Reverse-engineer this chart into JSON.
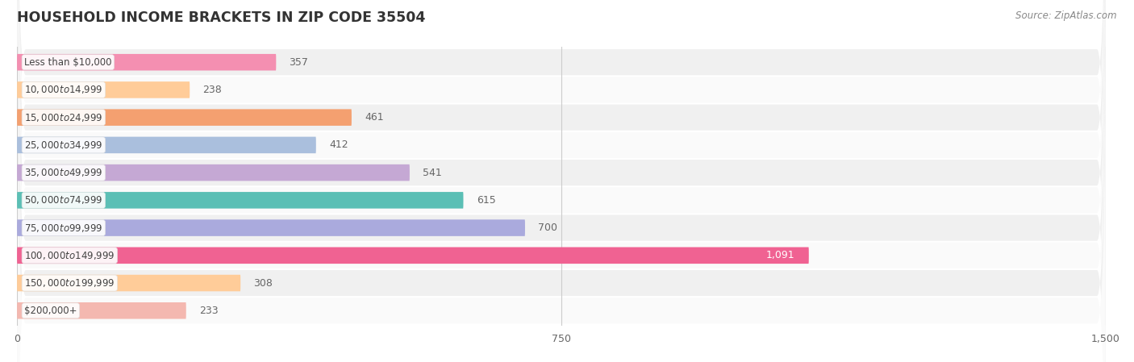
{
  "title": "HOUSEHOLD INCOME BRACKETS IN ZIP CODE 35504",
  "source": "Source: ZipAtlas.com",
  "categories": [
    "Less than $10,000",
    "$10,000 to $14,999",
    "$15,000 to $24,999",
    "$25,000 to $34,999",
    "$35,000 to $49,999",
    "$50,000 to $74,999",
    "$75,000 to $99,999",
    "$100,000 to $149,999",
    "$150,000 to $199,999",
    "$200,000+"
  ],
  "values": [
    357,
    238,
    461,
    412,
    541,
    615,
    700,
    1091,
    308,
    233
  ],
  "bar_colors": [
    "#F48FB1",
    "#FFCC99",
    "#F4A070",
    "#AABFDD",
    "#C5A8D4",
    "#5BBFB5",
    "#AAAADD",
    "#F06292",
    "#FFCC99",
    "#F4B8B0"
  ],
  "xlim": [
    0,
    1500
  ],
  "xticks": [
    0,
    750,
    1500
  ],
  "row_bg_light": "#f0f0f0",
  "row_bg_white": "#fafafa",
  "bar_row_color": "#e8e8e8",
  "title_color": "#333333",
  "source_color": "#888888",
  "label_text_color": "#444444",
  "value_label_color": "#666666",
  "value_label_inside_color": "#ffffff",
  "inside_label_bar_index": 7
}
